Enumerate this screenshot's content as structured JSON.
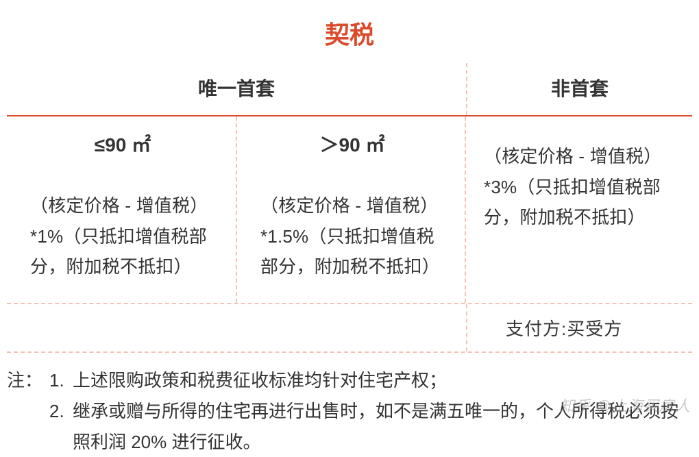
{
  "colors": {
    "accent": "#d94b2b",
    "dashed_border": "#f2c4b6",
    "text": "#333333"
  },
  "title": "契税",
  "header": {
    "left": "唯一首套",
    "right": "非首套"
  },
  "cells": {
    "c1": {
      "area": "≤90 ㎡",
      "text": "（核定价格 - 增值税）*1%（只抵扣增值税部分，附加税不抵扣）"
    },
    "c2": {
      "area": "＞90 ㎡",
      "text": "（核定价格 - 增值税）*1.5%（只抵扣增值税部分，附加税不抵扣）"
    },
    "c3": {
      "text": "（核定价格 - 增值税）*3%（只抵扣增值税部分，附加税不抵扣）"
    }
  },
  "payer": "支付方:买受方",
  "notes": {
    "label": "注：",
    "items": [
      {
        "num": "1.",
        "text": "上述限购政策和税费征收标准均针对住宅产权；"
      },
      {
        "num": "2.",
        "text": "继承或赠与所得的住宅再进行出售时，如不是满五唯一的，个人所得税必须按照利润 20% 进行征收。"
      }
    ]
  },
  "watermark": "知乎 @上海买房人"
}
